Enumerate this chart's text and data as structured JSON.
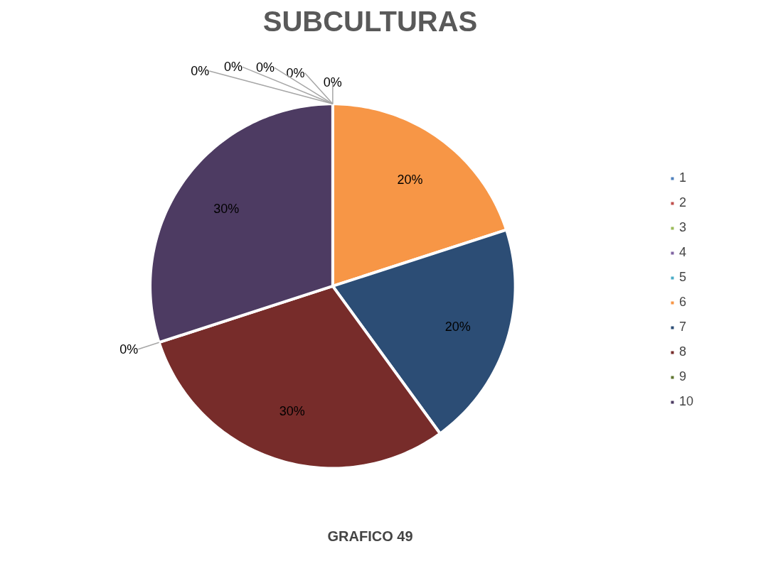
{
  "chart_data": {
    "type": "pie",
    "title": "SUBCULTURAS",
    "annotations": [
      "GRAFICO 49"
    ],
    "categories": [
      "1",
      "2",
      "3",
      "4",
      "5",
      "6",
      "7",
      "8",
      "9",
      "10"
    ],
    "values": [
      0,
      0,
      0,
      0,
      0,
      20,
      20,
      30,
      0,
      30
    ],
    "value_labels": [
      "0%",
      "0%",
      "0%",
      "0%",
      "0%",
      "20%",
      "20%",
      "30%",
      "0%",
      "30%"
    ],
    "colors": [
      "#4f81bd",
      "#c0504d",
      "#9bbb59",
      "#8064a2",
      "#4bacc6",
      "#f79646",
      "#2c4d75",
      "#772c2a",
      "#5f7530",
      "#4d3b62"
    ],
    "legend": "right"
  }
}
